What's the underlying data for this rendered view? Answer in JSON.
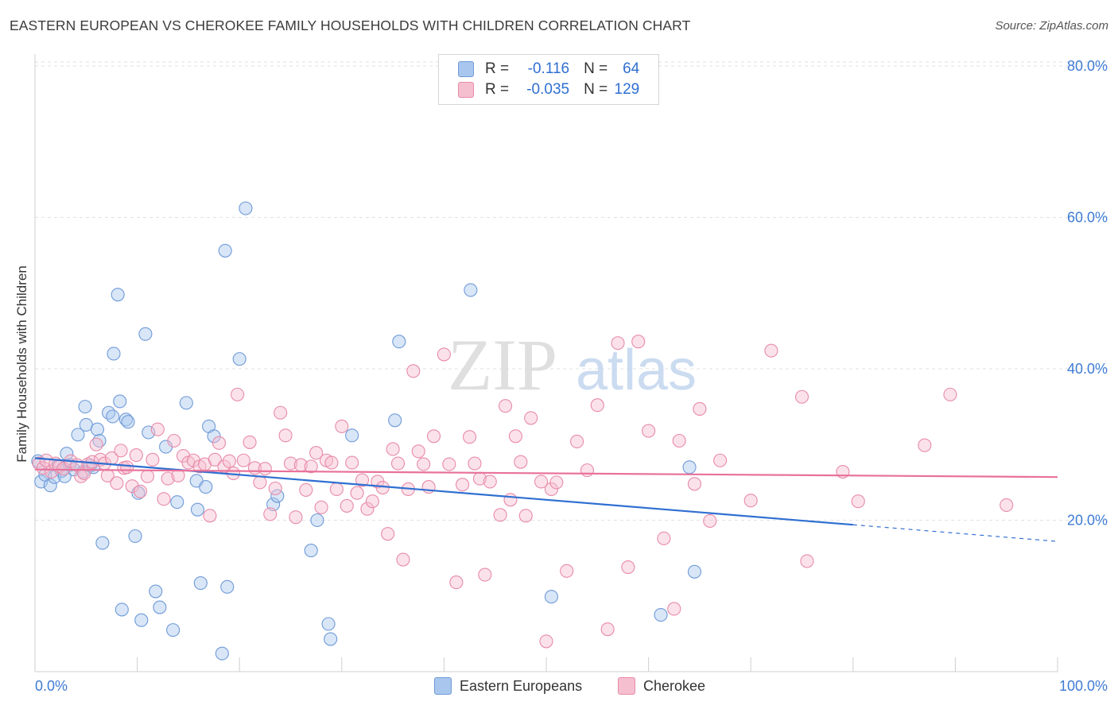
{
  "title": "EASTERN EUROPEAN VS CHEROKEE FAMILY HOUSEHOLDS WITH CHILDREN CORRELATION CHART",
  "source": "Source: ZipAtlas.com",
  "legend": {
    "row1": {
      "r_label": "R =",
      "r_value": "-0.116",
      "n_label": "N =",
      "n_value": "64"
    },
    "row2": {
      "r_label": "R =",
      "r_value": "-0.035",
      "n_label": "N =",
      "n_value": "129"
    }
  },
  "colors": {
    "blue_fill": "#a9c7ee",
    "blue_stroke": "#6f9ad8",
    "blue_line": "#2f6fd1",
    "pink_fill": "#f6bfd0",
    "pink_stroke": "#e88aa8",
    "pink_line": "#e8719a",
    "tick_text": "#3d7bd4",
    "grid": "#e2e2e2"
  },
  "chart_data": {
    "type": "scatter",
    "ylabel": "Family Households with Children",
    "xlabel": "",
    "xlim": [
      0,
      100
    ],
    "ylim": [
      0,
      83
    ],
    "x_tick_labels": [
      "0.0%",
      "100.0%"
    ],
    "y_ticks": [
      20,
      40,
      60,
      80
    ],
    "y_tick_labels": [
      "20.0%",
      "40.0%",
      "60.0%",
      "80.0%"
    ],
    "grid": true,
    "legend_position": "top-center",
    "series": [
      {
        "name": "Eastern Europeans",
        "color": "blue",
        "trend": {
          "x0": 0,
          "y0": 28.2,
          "x1": 80,
          "y1": 19.4,
          "dashed_to": 100,
          "dashed_y": 17.2
        },
        "points": [
          [
            0.3,
            27.8
          ],
          [
            0.6,
            25.1
          ],
          [
            1.0,
            26.0
          ],
          [
            1.5,
            24.6
          ],
          [
            1.9,
            25.7
          ],
          [
            2.3,
            27.2
          ],
          [
            2.6,
            26.5
          ],
          [
            2.9,
            25.8
          ],
          [
            3.1,
            28.8
          ],
          [
            3.4,
            27.3
          ],
          [
            3.8,
            26.7
          ],
          [
            4.2,
            31.3
          ],
          [
            4.7,
            26.4
          ],
          [
            4.9,
            35.0
          ],
          [
            5.0,
            32.6
          ],
          [
            5.4,
            27.2
          ],
          [
            5.7,
            27.0
          ],
          [
            6.1,
            32.0
          ],
          [
            6.3,
            30.5
          ],
          [
            6.6,
            17.0
          ],
          [
            7.2,
            34.2
          ],
          [
            7.6,
            33.7
          ],
          [
            7.7,
            42.0
          ],
          [
            8.1,
            49.8
          ],
          [
            8.3,
            35.7
          ],
          [
            8.5,
            8.2
          ],
          [
            8.9,
            33.3
          ],
          [
            9.1,
            33.0
          ],
          [
            9.8,
            17.9
          ],
          [
            10.1,
            23.6
          ],
          [
            10.4,
            6.8
          ],
          [
            10.8,
            44.6
          ],
          [
            11.1,
            31.6
          ],
          [
            11.8,
            10.6
          ],
          [
            12.2,
            8.5
          ],
          [
            12.8,
            29.7
          ],
          [
            13.5,
            5.5
          ],
          [
            13.9,
            22.4
          ],
          [
            14.8,
            35.5
          ],
          [
            15.8,
            25.2
          ],
          [
            15.9,
            21.4
          ],
          [
            16.2,
            11.7
          ],
          [
            16.7,
            24.4
          ],
          [
            17.0,
            32.4
          ],
          [
            17.5,
            31.1
          ],
          [
            18.3,
            2.4
          ],
          [
            18.6,
            55.6
          ],
          [
            18.8,
            11.2
          ],
          [
            20.0,
            41.3
          ],
          [
            20.6,
            61.2
          ],
          [
            23.3,
            22.1
          ],
          [
            23.7,
            23.2
          ],
          [
            27.0,
            16.0
          ],
          [
            27.6,
            20.0
          ],
          [
            28.7,
            6.3
          ],
          [
            28.9,
            4.3
          ],
          [
            31.0,
            31.2
          ],
          [
            35.2,
            33.2
          ],
          [
            35.6,
            43.6
          ],
          [
            42.6,
            50.4
          ],
          [
            50.5,
            9.9
          ],
          [
            61.2,
            7.5
          ],
          [
            64.0,
            27.0
          ],
          [
            64.5,
            13.2
          ]
        ]
      },
      {
        "name": "Cherokee",
        "color": "pink",
        "trend": {
          "x0": 0,
          "y0": 26.7,
          "x1": 100,
          "y1": 25.7
        },
        "points": [
          [
            0.4,
            27.5
          ],
          [
            0.8,
            26.9
          ],
          [
            1.1,
            27.9
          ],
          [
            1.6,
            26.4
          ],
          [
            2.0,
            27.5
          ],
          [
            2.4,
            27.1
          ],
          [
            2.8,
            26.8
          ],
          [
            3.5,
            27.8
          ],
          [
            4.1,
            27.3
          ],
          [
            4.5,
            25.8
          ],
          [
            4.8,
            26.2
          ],
          [
            5.2,
            27.4
          ],
          [
            5.6,
            27.7
          ],
          [
            6.0,
            30.0
          ],
          [
            6.4,
            28.0
          ],
          [
            6.8,
            27.5
          ],
          [
            7.1,
            25.9
          ],
          [
            7.5,
            28.2
          ],
          [
            8.0,
            24.9
          ],
          [
            8.4,
            29.2
          ],
          [
            8.7,
            26.9
          ],
          [
            9.0,
            27.0
          ],
          [
            9.5,
            24.5
          ],
          [
            9.9,
            28.6
          ],
          [
            10.3,
            23.8
          ],
          [
            11.0,
            25.8
          ],
          [
            11.5,
            28.0
          ],
          [
            12.0,
            32.0
          ],
          [
            12.6,
            22.8
          ],
          [
            13.0,
            25.5
          ],
          [
            13.6,
            30.5
          ],
          [
            14.0,
            25.9
          ],
          [
            14.5,
            28.5
          ],
          [
            15.0,
            27.6
          ],
          [
            15.5,
            27.9
          ],
          [
            16.1,
            27.1
          ],
          [
            16.6,
            27.4
          ],
          [
            17.1,
            20.6
          ],
          [
            17.6,
            28.0
          ],
          [
            18.0,
            30.2
          ],
          [
            18.5,
            27.1
          ],
          [
            19.0,
            27.8
          ],
          [
            19.4,
            26.2
          ],
          [
            19.8,
            36.6
          ],
          [
            20.4,
            27.9
          ],
          [
            21.0,
            30.3
          ],
          [
            21.5,
            26.9
          ],
          [
            22.0,
            25.0
          ],
          [
            22.5,
            26.8
          ],
          [
            23.0,
            20.8
          ],
          [
            23.5,
            24.2
          ],
          [
            24.0,
            34.2
          ],
          [
            24.5,
            31.2
          ],
          [
            25.0,
            27.5
          ],
          [
            25.5,
            20.4
          ],
          [
            26.0,
            27.3
          ],
          [
            26.5,
            24.0
          ],
          [
            27.0,
            27.1
          ],
          [
            27.5,
            28.9
          ],
          [
            28.0,
            21.7
          ],
          [
            28.5,
            27.9
          ],
          [
            29.0,
            27.6
          ],
          [
            29.5,
            24.1
          ],
          [
            30.0,
            32.4
          ],
          [
            30.5,
            21.9
          ],
          [
            31.0,
            27.6
          ],
          [
            31.5,
            23.6
          ],
          [
            32.0,
            25.3
          ],
          [
            32.5,
            21.5
          ],
          [
            33.0,
            22.5
          ],
          [
            33.5,
            25.1
          ],
          [
            34.0,
            24.3
          ],
          [
            34.5,
            18.2
          ],
          [
            35.0,
            29.4
          ],
          [
            35.5,
            27.5
          ],
          [
            36.0,
            14.8
          ],
          [
            36.5,
            24.1
          ],
          [
            37.0,
            39.7
          ],
          [
            37.5,
            29.1
          ],
          [
            38.0,
            27.4
          ],
          [
            38.5,
            24.4
          ],
          [
            39.0,
            31.1
          ],
          [
            40.0,
            41.9
          ],
          [
            40.5,
            27.4
          ],
          [
            41.2,
            11.8
          ],
          [
            41.8,
            24.7
          ],
          [
            42.5,
            31.0
          ],
          [
            43.0,
            27.5
          ],
          [
            43.5,
            25.5
          ],
          [
            44.0,
            12.8
          ],
          [
            44.5,
            25.1
          ],
          [
            45.5,
            20.7
          ],
          [
            46.0,
            35.1
          ],
          [
            46.5,
            22.7
          ],
          [
            47.0,
            31.1
          ],
          [
            47.5,
            27.7
          ],
          [
            48.0,
            20.6
          ],
          [
            48.5,
            33.5
          ],
          [
            49.5,
            25.1
          ],
          [
            50.0,
            4.0
          ],
          [
            50.5,
            24.1
          ],
          [
            51.0,
            25.0
          ],
          [
            52.0,
            13.3
          ],
          [
            53.0,
            30.4
          ],
          [
            54.0,
            26.6
          ],
          [
            55.0,
            35.2
          ],
          [
            56.0,
            5.6
          ],
          [
            57.0,
            43.4
          ],
          [
            58.0,
            13.8
          ],
          [
            59.0,
            43.6
          ],
          [
            60.0,
            31.8
          ],
          [
            61.5,
            17.6
          ],
          [
            62.5,
            8.3
          ],
          [
            63.0,
            30.5
          ],
          [
            64.5,
            24.8
          ],
          [
            65.0,
            34.7
          ],
          [
            66.0,
            19.9
          ],
          [
            67.0,
            27.9
          ],
          [
            70.0,
            22.6
          ],
          [
            72.0,
            42.4
          ],
          [
            75.0,
            36.3
          ],
          [
            75.5,
            14.6
          ],
          [
            79.0,
            26.4
          ],
          [
            80.5,
            22.5
          ],
          [
            87.0,
            29.9
          ],
          [
            89.5,
            36.6
          ],
          [
            95.0,
            22.0
          ]
        ]
      }
    ]
  },
  "bottom_legend": {
    "blue_label": "Eastern Europeans",
    "pink_label": "Cherokee"
  },
  "watermark": {
    "part1": "ZIP",
    "part2": "atlas"
  }
}
